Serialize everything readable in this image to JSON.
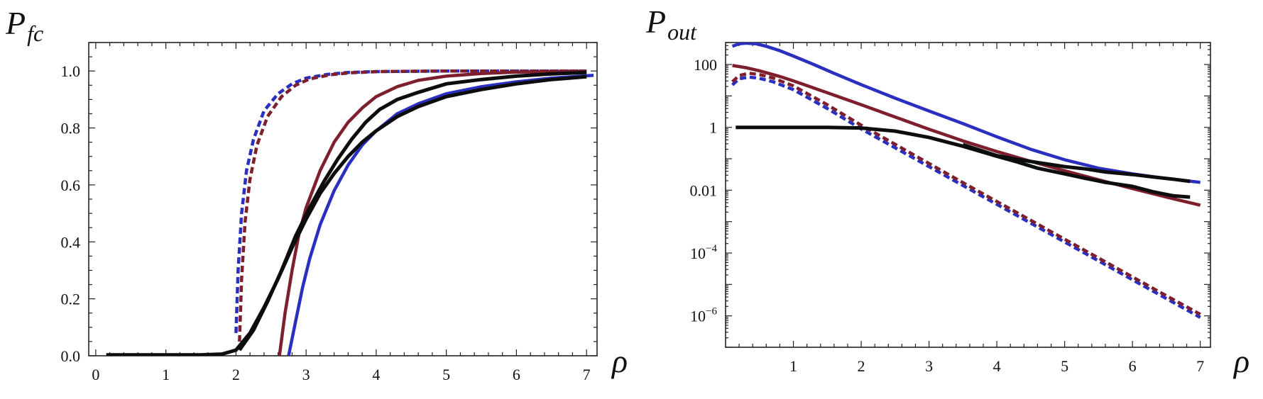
{
  "colors": {
    "blue": "#2b2fbf",
    "red": "#7e1f2e",
    "black": "#0d0d0d"
  },
  "chart_data": [
    {
      "type": "line",
      "ylabel": "P",
      "ylabel_sub": "fc",
      "xlabel": "ρ",
      "xlim": [
        -0.1,
        7.15
      ],
      "ylim": [
        0,
        1.1
      ],
      "yscale": "linear",
      "xticks": [
        0,
        1,
        2,
        3,
        4,
        5,
        6,
        7
      ],
      "xtick_labels": [
        "0",
        "1",
        "2",
        "3",
        "4",
        "5",
        "6",
        "7"
      ],
      "yticks": [
        0,
        0.2,
        0.4,
        0.6,
        0.8,
        1.0
      ],
      "ytick_labels": [
        "0.0",
        "0.2",
        "0.4",
        "0.6",
        "0.8",
        "1.0"
      ],
      "series": [
        {
          "name": "blue-dashed",
          "color": "blue",
          "style": "dashed",
          "x": [
            2.0,
            2.03,
            2.08,
            2.15,
            2.25,
            2.4,
            2.6,
            2.8,
            3.0,
            3.3,
            3.6,
            4.0,
            5.0,
            6.0,
            7.0
          ],
          "y": [
            0.08,
            0.3,
            0.5,
            0.65,
            0.76,
            0.86,
            0.92,
            0.955,
            0.975,
            0.988,
            0.995,
            0.998,
            1.0,
            1.0,
            1.0
          ]
        },
        {
          "name": "red-dashed",
          "color": "red",
          "style": "dashed",
          "x": [
            2.05,
            2.08,
            2.13,
            2.2,
            2.3,
            2.45,
            2.65,
            2.85,
            3.05,
            3.35,
            3.65,
            4.05,
            5.0,
            6.0,
            7.0
          ],
          "y": [
            0.05,
            0.27,
            0.47,
            0.62,
            0.74,
            0.84,
            0.91,
            0.95,
            0.972,
            0.987,
            0.994,
            0.998,
            1.0,
            1.0,
            1.0
          ]
        },
        {
          "name": "red-solid",
          "color": "red",
          "style": "solid",
          "x": [
            2.62,
            2.7,
            2.8,
            2.9,
            3.0,
            3.2,
            3.4,
            3.6,
            3.8,
            4.0,
            4.3,
            4.6,
            5.0,
            5.5,
            6.0,
            7.0
          ],
          "y": [
            0.0,
            0.15,
            0.3,
            0.43,
            0.52,
            0.65,
            0.75,
            0.82,
            0.87,
            0.91,
            0.945,
            0.967,
            0.982,
            0.991,
            0.996,
            0.999
          ]
        },
        {
          "name": "blue-solid",
          "color": "blue",
          "style": "solid",
          "x": [
            2.75,
            2.85,
            2.95,
            3.05,
            3.2,
            3.4,
            3.6,
            3.8,
            4.0,
            4.3,
            4.6,
            5.0,
            5.5,
            6.0,
            6.5,
            7.1
          ],
          "y": [
            0.0,
            0.12,
            0.24,
            0.34,
            0.46,
            0.58,
            0.67,
            0.74,
            0.79,
            0.85,
            0.885,
            0.92,
            0.945,
            0.962,
            0.975,
            0.985
          ]
        },
        {
          "name": "black-sim-1",
          "color": "black",
          "style": "solid",
          "x": [
            0.15,
            1.0,
            1.5,
            1.8,
            2.0,
            2.2,
            2.4,
            2.6,
            2.8,
            3.0,
            3.2,
            3.4,
            3.6,
            3.8,
            4.0,
            4.3,
            4.6,
            5.0,
            5.5,
            6.0,
            6.5,
            7.0
          ],
          "y": [
            0.003,
            0.003,
            0.003,
            0.006,
            0.02,
            0.08,
            0.17,
            0.27,
            0.38,
            0.48,
            0.57,
            0.64,
            0.7,
            0.75,
            0.79,
            0.84,
            0.875,
            0.91,
            0.935,
            0.955,
            0.97,
            0.98
          ]
        },
        {
          "name": "black-sim-2",
          "color": "black",
          "style": "solid",
          "x": [
            2.05,
            2.25,
            2.45,
            2.65,
            2.85,
            3.05,
            3.25,
            3.45,
            3.65,
            3.85,
            4.05,
            4.3,
            4.6,
            5.0,
            5.5,
            6.0,
            6.5,
            7.0
          ],
          "y": [
            0.02,
            0.09,
            0.19,
            0.3,
            0.42,
            0.52,
            0.61,
            0.69,
            0.76,
            0.82,
            0.865,
            0.9,
            0.925,
            0.955,
            0.97,
            0.982,
            0.99,
            0.995
          ]
        }
      ]
    },
    {
      "type": "line",
      "ylabel": "P",
      "ylabel_sub": "out",
      "xlabel": "ρ",
      "xlim": [
        0.0,
        7.15
      ],
      "ylim_log10": [
        -7.0,
        2.7
      ],
      "yscale": "log",
      "xticks": [
        1,
        2,
        3,
        4,
        5,
        6,
        7
      ],
      "xtick_labels": [
        "1",
        "2",
        "3",
        "4",
        "5",
        "6",
        "7"
      ],
      "ytick_log10": [
        -6,
        -4,
        -2,
        0,
        2
      ],
      "ytick_labels": [
        {
          "base": "10",
          "exp": "−6"
        },
        {
          "base": "10",
          "exp": "−4"
        },
        {
          "base": "0.01",
          "exp": ""
        },
        {
          "base": "1",
          "exp": ""
        },
        {
          "base": "100",
          "exp": ""
        }
      ],
      "series": [
        {
          "name": "blue-solid",
          "color": "blue",
          "style": "solid",
          "x": [
            0.1,
            0.2,
            0.3,
            0.45,
            0.6,
            0.8,
            1.0,
            1.3,
            1.6,
            2.0,
            2.5,
            3.0,
            3.5,
            4.0,
            4.5,
            5.0,
            5.5,
            6.0,
            6.5,
            7.0
          ],
          "log10y": [
            2.58,
            2.66,
            2.68,
            2.66,
            2.58,
            2.44,
            2.27,
            2.0,
            1.72,
            1.36,
            0.93,
            0.52,
            0.12,
            -0.3,
            -0.7,
            -1.03,
            -1.3,
            -1.48,
            -1.63,
            -1.75
          ]
        },
        {
          "name": "red-solid",
          "color": "red",
          "style": "solid",
          "x": [
            0.1,
            0.3,
            0.5,
            0.8,
            1.0,
            1.5,
            2.0,
            2.5,
            3.0,
            3.5,
            4.0,
            4.5,
            5.0,
            5.5,
            6.0,
            6.5,
            7.0
          ],
          "log10y": [
            1.97,
            1.9,
            1.8,
            1.62,
            1.48,
            1.1,
            0.72,
            0.33,
            -0.06,
            -0.43,
            -0.77,
            -1.08,
            -1.38,
            -1.67,
            -1.95,
            -2.22,
            -2.48
          ]
        },
        {
          "name": "blue-dashed",
          "color": "blue",
          "style": "dashed",
          "x": [
            0.1,
            0.2,
            0.35,
            0.5,
            0.7,
            1.0,
            1.5,
            2.0,
            2.5,
            3.0,
            3.5,
            4.0,
            4.5,
            5.0,
            5.5,
            6.0,
            6.5,
            7.0
          ],
          "log10y": [
            1.35,
            1.55,
            1.6,
            1.56,
            1.45,
            1.2,
            0.6,
            -0.05,
            -0.65,
            -1.25,
            -1.85,
            -2.45,
            -3.05,
            -3.65,
            -4.25,
            -4.85,
            -5.45,
            -6.05
          ]
        },
        {
          "name": "red-dashed",
          "color": "red",
          "style": "dashed",
          "x": [
            0.1,
            0.2,
            0.35,
            0.5,
            0.7,
            1.0,
            1.5,
            2.0,
            2.5,
            3.0,
            3.5,
            4.0,
            4.5,
            5.0,
            5.5,
            6.0,
            6.5,
            7.0
          ],
          "log10y": [
            1.45,
            1.65,
            1.72,
            1.68,
            1.57,
            1.32,
            0.72,
            0.07,
            -0.54,
            -1.15,
            -1.76,
            -2.36,
            -2.96,
            -3.56,
            -4.16,
            -4.76,
            -5.36,
            -5.95
          ]
        },
        {
          "name": "black-sim-1",
          "color": "black",
          "style": "solid",
          "x": [
            0.15,
            0.5,
            1.0,
            1.5,
            2.0,
            2.5,
            3.0,
            3.5,
            4.0,
            4.3,
            4.6,
            5.0,
            5.3,
            5.6,
            6.0,
            6.3,
            6.6,
            6.85
          ],
          "log10y": [
            0.0,
            0.0,
            0.0,
            0.0,
            -0.02,
            -0.12,
            -0.32,
            -0.6,
            -0.92,
            -1.1,
            -1.3,
            -1.48,
            -1.62,
            -1.75,
            -1.88,
            -2.05,
            -2.18,
            -2.22
          ]
        },
        {
          "name": "black-sim-2",
          "color": "black",
          "style": "solid",
          "x": [
            3.5,
            4.0,
            4.3,
            4.6,
            5.0,
            5.3,
            5.6,
            6.0,
            6.3,
            6.6,
            6.85
          ],
          "log10y": [
            -0.55,
            -0.9,
            -1.02,
            -1.12,
            -1.25,
            -1.32,
            -1.42,
            -1.5,
            -1.58,
            -1.65,
            -1.72
          ]
        }
      ]
    }
  ]
}
